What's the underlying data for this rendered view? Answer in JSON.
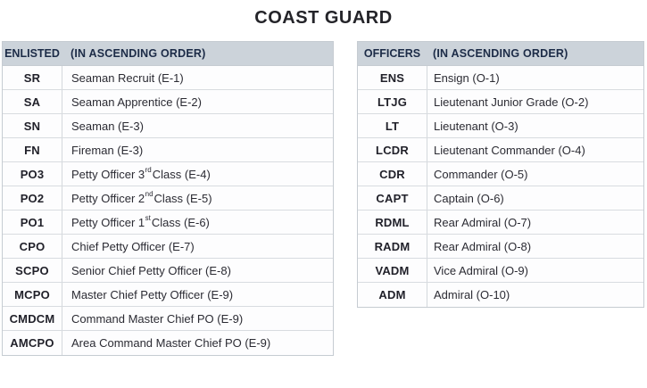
{
  "page_title": "COAST GUARD",
  "colors": {
    "header_bg": "#ccd3da",
    "header_text": "#1c2b47",
    "body_text": "#2b2b33",
    "abbr_text": "#21212a",
    "outer_border": "#c6ccd2",
    "row_separator": "#d8dce0",
    "page_bg": "#ffffff"
  },
  "enlisted": {
    "header_col1": "ENLISTED",
    "header_col2": "(IN ASCENDING ORDER)",
    "rows": [
      {
        "abbr": "SR",
        "title": "Seaman Recruit (E-1)"
      },
      {
        "abbr": "SA",
        "title": "Seaman Apprentice (E-2)"
      },
      {
        "abbr": "SN",
        "title": "Seaman (E-3)"
      },
      {
        "abbr": "FN",
        "title": "Fireman (E-3)"
      },
      {
        "abbr": "PO3",
        "title_pre": "Petty Officer 3",
        "title_sup": "rd",
        "title_post": " Class (E-4)"
      },
      {
        "abbr": "PO2",
        "title_pre": "Petty Officer 2",
        "title_sup": "nd",
        "title_post": " Class (E-5)"
      },
      {
        "abbr": "PO1",
        "title_pre": "Petty Officer 1",
        "title_sup": "st",
        "title_post": " Class (E-6)"
      },
      {
        "abbr": "CPO",
        "title": "Chief Petty Officer (E-7)"
      },
      {
        "abbr": "SCPO",
        "title": "Senior Chief Petty Officer (E-8)"
      },
      {
        "abbr": "MCPO",
        "title": "Master Chief Petty Officer (E-9)"
      },
      {
        "abbr": "CMDCM",
        "title": "Command Master Chief PO (E-9)"
      },
      {
        "abbr": "AMCPO",
        "title": "Area Command Master Chief PO (E-9)"
      }
    ]
  },
  "officers": {
    "header_col1": "OFFICERS",
    "header_col2": "(IN ASCENDING ORDER)",
    "rows": [
      {
        "abbr": "ENS",
        "title": "Ensign (O-1)"
      },
      {
        "abbr": "LTJG",
        "title": "Lieutenant Junior Grade (O-2)"
      },
      {
        "abbr": "LT",
        "title": "Lieutenant (O-3)"
      },
      {
        "abbr": "LCDR",
        "title": "Lieutenant Commander (O-4)"
      },
      {
        "abbr": "CDR",
        "title": "Commander (O-5)"
      },
      {
        "abbr": "CAPT",
        "title": "Captain (O-6)"
      },
      {
        "abbr": "RDML",
        "title": "Rear Admiral (O-7)"
      },
      {
        "abbr": "RADM",
        "title": "Rear Admiral (O-8)"
      },
      {
        "abbr": "VADM",
        "title": "Vice Admiral (O-9)"
      },
      {
        "abbr": "ADM",
        "title": "Admiral (O-10)"
      }
    ]
  }
}
